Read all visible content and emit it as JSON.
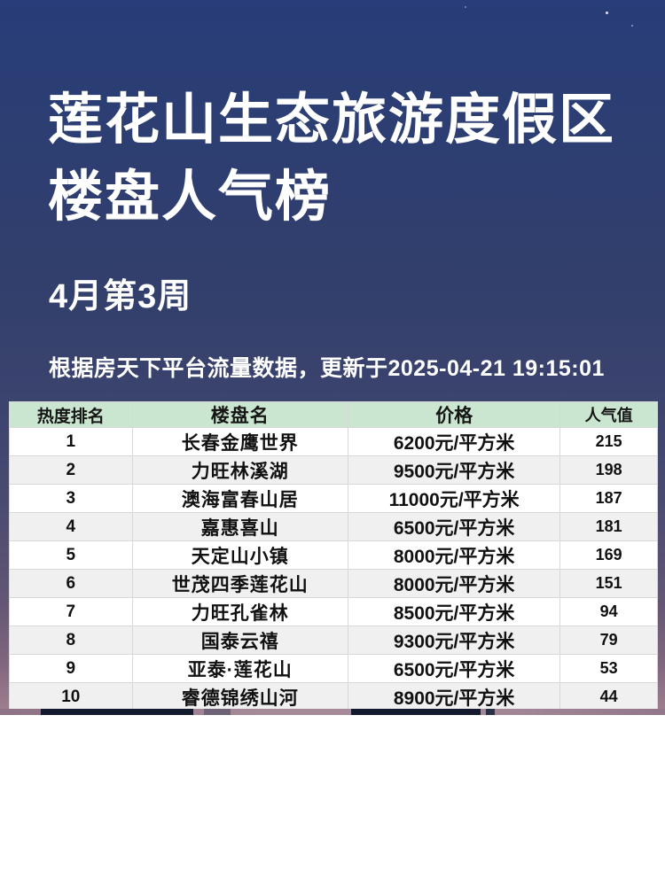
{
  "header": {
    "title": "莲花山生态旅游度假区楼盘人气榜",
    "week": "4月第3周",
    "note": "根据房天下平台流量数据，更新于2025-04-21 19:15:01"
  },
  "table": {
    "headers": [
      "热度排名",
      "楼盘名",
      "价格",
      "人气值"
    ],
    "rows": [
      {
        "rank": "1",
        "name": "长春金鹰世界",
        "price": "6200元/平方米",
        "popularity": "215"
      },
      {
        "rank": "2",
        "name": "力旺林溪湖",
        "price": "9500元/平方米",
        "popularity": "198"
      },
      {
        "rank": "3",
        "name": "澳海富春山居",
        "price": "11000元/平方米",
        "popularity": "187"
      },
      {
        "rank": "4",
        "name": "嘉惠喜山",
        "price": "6500元/平方米",
        "popularity": "181"
      },
      {
        "rank": "5",
        "name": "天定山小镇",
        "price": "8000元/平方米",
        "popularity": "169"
      },
      {
        "rank": "6",
        "name": "世茂四季莲花山",
        "price": "8000元/平方米",
        "popularity": "151"
      },
      {
        "rank": "7",
        "name": "力旺孔雀林",
        "price": "8500元/平方米",
        "popularity": "94"
      },
      {
        "rank": "8",
        "name": "国泰云禧",
        "price": "9300元/平方米",
        "popularity": "79"
      },
      {
        "rank": "9",
        "name": "亚泰·莲花山",
        "price": "6500元/平方米",
        "popularity": "53"
      },
      {
        "rank": "10",
        "name": "睿德锦绣山河",
        "price": "8900元/平方米",
        "popularity": "44"
      }
    ]
  },
  "colors": {
    "background_top": "#283d79",
    "background_bottom": "#9d7e8e",
    "table_header_green": "#cbe6d0",
    "row_alternate": "#f0f0f1",
    "title_text": "#ffffff"
  }
}
